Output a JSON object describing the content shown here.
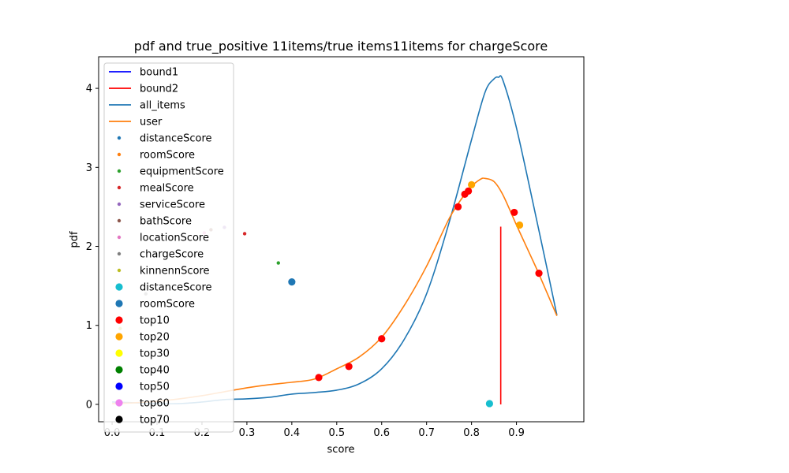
{
  "chart_data": {
    "type": "line",
    "title": "pdf and true_positive 11items/true items11items for chargeScore",
    "xlabel": "score",
    "ylabel": "pdf",
    "xlim": [
      -0.03,
      1.05
    ],
    "ylim": [
      -0.22,
      4.4
    ],
    "x_ticks": [
      "0.0",
      "0.1",
      "0.2",
      "0.3",
      "0.4",
      "0.5",
      "0.6",
      "0.7",
      "0.8",
      "0.9"
    ],
    "x_tick_values": [
      0.0,
      0.1,
      0.2,
      0.3,
      0.4,
      0.5,
      0.6,
      0.7,
      0.8,
      0.9
    ],
    "y_ticks": [
      "0",
      "1",
      "2",
      "3",
      "4"
    ],
    "y_tick_values": [
      0,
      1,
      2,
      3,
      4
    ],
    "legend_position": "upper-left",
    "bounds": [
      {
        "name": "bound1",
        "color": "#0000ff",
        "x": null,
        "y_range": [
          0,
          2.25
        ]
      },
      {
        "name": "bound2",
        "color": "#ff0000",
        "x": 0.865,
        "y_range": [
          0,
          2.25
        ]
      }
    ],
    "lines": [
      {
        "name": "all_items",
        "color": "#1f77b4",
        "x": [
          0.0,
          0.05,
          0.1,
          0.15,
          0.2,
          0.25,
          0.3,
          0.35,
          0.4,
          0.45,
          0.5,
          0.55,
          0.6,
          0.65,
          0.7,
          0.75,
          0.8,
          0.83,
          0.85,
          0.86,
          0.87,
          0.9,
          0.95,
          0.99
        ],
        "y": [
          0.03,
          0.02,
          0.01,
          0.01,
          0.03,
          0.06,
          0.07,
          0.09,
          0.13,
          0.15,
          0.18,
          0.26,
          0.45,
          0.82,
          1.4,
          2.3,
          3.35,
          3.95,
          4.12,
          4.14,
          4.1,
          3.5,
          2.2,
          1.13
        ]
      },
      {
        "name": "user",
        "color": "#ff7f0e",
        "x": [
          0.0,
          0.05,
          0.1,
          0.15,
          0.2,
          0.25,
          0.3,
          0.35,
          0.4,
          0.45,
          0.5,
          0.55,
          0.6,
          0.65,
          0.7,
          0.75,
          0.78,
          0.8,
          0.82,
          0.83,
          0.85,
          0.87,
          0.9,
          0.93,
          0.95,
          0.99
        ],
        "y": [
          0.01,
          0.02,
          0.04,
          0.07,
          0.11,
          0.16,
          0.21,
          0.25,
          0.28,
          0.32,
          0.45,
          0.6,
          0.85,
          1.25,
          1.75,
          2.35,
          2.62,
          2.76,
          2.85,
          2.86,
          2.82,
          2.65,
          2.27,
          1.9,
          1.65,
          1.12
        ]
      }
    ],
    "scatter_small": [
      {
        "name": "distanceScore",
        "color": "#1f77b4",
        "x": null,
        "y": null
      },
      {
        "name": "roomScore",
        "color": "#ff7f0e",
        "x": null,
        "y": null
      },
      {
        "name": "equipmentScore",
        "color": "#2ca02c",
        "x": 0.37,
        "y": 1.79
      },
      {
        "name": "mealScore",
        "color": "#d62728",
        "x": 0.295,
        "y": 2.16
      },
      {
        "name": "serviceScore",
        "color": "#9467bd",
        "x": 0.25,
        "y": 2.24
      },
      {
        "name": "bathScore",
        "color": "#8c564b",
        "x": 0.22,
        "y": 2.21
      },
      {
        "name": "locationScore",
        "color": "#e377c2",
        "x": 0.205,
        "y": 2.17
      },
      {
        "name": "chargeScore",
        "color": "#7f7f7f",
        "x": 0.075,
        "y": 1.4
      },
      {
        "name": "kinnennScore",
        "color": "#bcbd22",
        "x": 0.018,
        "y": 0.96
      }
    ],
    "scatter_large": [
      {
        "name": "distanceScore",
        "color": "#17becf",
        "points": [
          {
            "x": 0.84,
            "y": 0.01
          }
        ]
      },
      {
        "name": "roomScore",
        "color": "#1f77b4",
        "points": [
          {
            "x": 0.4,
            "y": 1.55
          }
        ]
      },
      {
        "name": "top10",
        "color": "#ff0000",
        "points": [
          {
            "x": 0.46,
            "y": 0.34
          },
          {
            "x": 0.527,
            "y": 0.48
          },
          {
            "x": 0.6,
            "y": 0.83
          },
          {
            "x": 0.77,
            "y": 2.5
          },
          {
            "x": 0.785,
            "y": 2.66
          },
          {
            "x": 0.793,
            "y": 2.7
          },
          {
            "x": 0.895,
            "y": 2.43
          },
          {
            "x": 0.95,
            "y": 1.66
          }
        ]
      },
      {
        "name": "top20",
        "color": "#ffa500",
        "points": [
          {
            "x": 0.8,
            "y": 2.78
          },
          {
            "x": 0.907,
            "y": 2.27
          }
        ]
      },
      {
        "name": "top30",
        "color": "#ffff00",
        "points": []
      },
      {
        "name": "top40",
        "color": "#008000",
        "points": []
      },
      {
        "name": "top50",
        "color": "#0000ff",
        "points": []
      },
      {
        "name": "top60",
        "color": "#ee82ee",
        "points": []
      },
      {
        "name": "top70",
        "color": "#000000",
        "points": []
      }
    ],
    "legend": [
      {
        "label": "bound1",
        "kind": "line",
        "color": "#0000ff"
      },
      {
        "label": "bound2",
        "kind": "line",
        "color": "#ff0000"
      },
      {
        "label": "all_items",
        "kind": "line",
        "color": "#1f77b4"
      },
      {
        "label": "user",
        "kind": "line",
        "color": "#ff7f0e"
      },
      {
        "label": "distanceScore",
        "kind": "small-dot",
        "color": "#1f77b4"
      },
      {
        "label": "roomScore",
        "kind": "small-dot",
        "color": "#ff7f0e"
      },
      {
        "label": "equipmentScore",
        "kind": "small-dot",
        "color": "#2ca02c"
      },
      {
        "label": "mealScore",
        "kind": "small-dot",
        "color": "#d62728"
      },
      {
        "label": "serviceScore",
        "kind": "small-dot",
        "color": "#9467bd"
      },
      {
        "label": "bathScore",
        "kind": "small-dot",
        "color": "#8c564b"
      },
      {
        "label": "locationScore",
        "kind": "small-dot",
        "color": "#e377c2"
      },
      {
        "label": "chargeScore",
        "kind": "small-dot",
        "color": "#7f7f7f"
      },
      {
        "label": "kinnennScore",
        "kind": "small-dot",
        "color": "#bcbd22"
      },
      {
        "label": "distanceScore",
        "kind": "big-dot",
        "color": "#17becf"
      },
      {
        "label": "roomScore",
        "kind": "big-dot",
        "color": "#1f77b4"
      },
      {
        "label": "top10",
        "kind": "big-dot",
        "color": "#ff0000"
      },
      {
        "label": "top20",
        "kind": "big-dot",
        "color": "#ffa500"
      },
      {
        "label": "top30",
        "kind": "big-dot",
        "color": "#ffff00"
      },
      {
        "label": "top40",
        "kind": "big-dot",
        "color": "#008000"
      },
      {
        "label": "top50",
        "kind": "big-dot",
        "color": "#0000ff"
      },
      {
        "label": "top60",
        "kind": "big-dot",
        "color": "#ee82ee"
      },
      {
        "label": "top70",
        "kind": "big-dot",
        "color": "#000000"
      }
    ]
  }
}
